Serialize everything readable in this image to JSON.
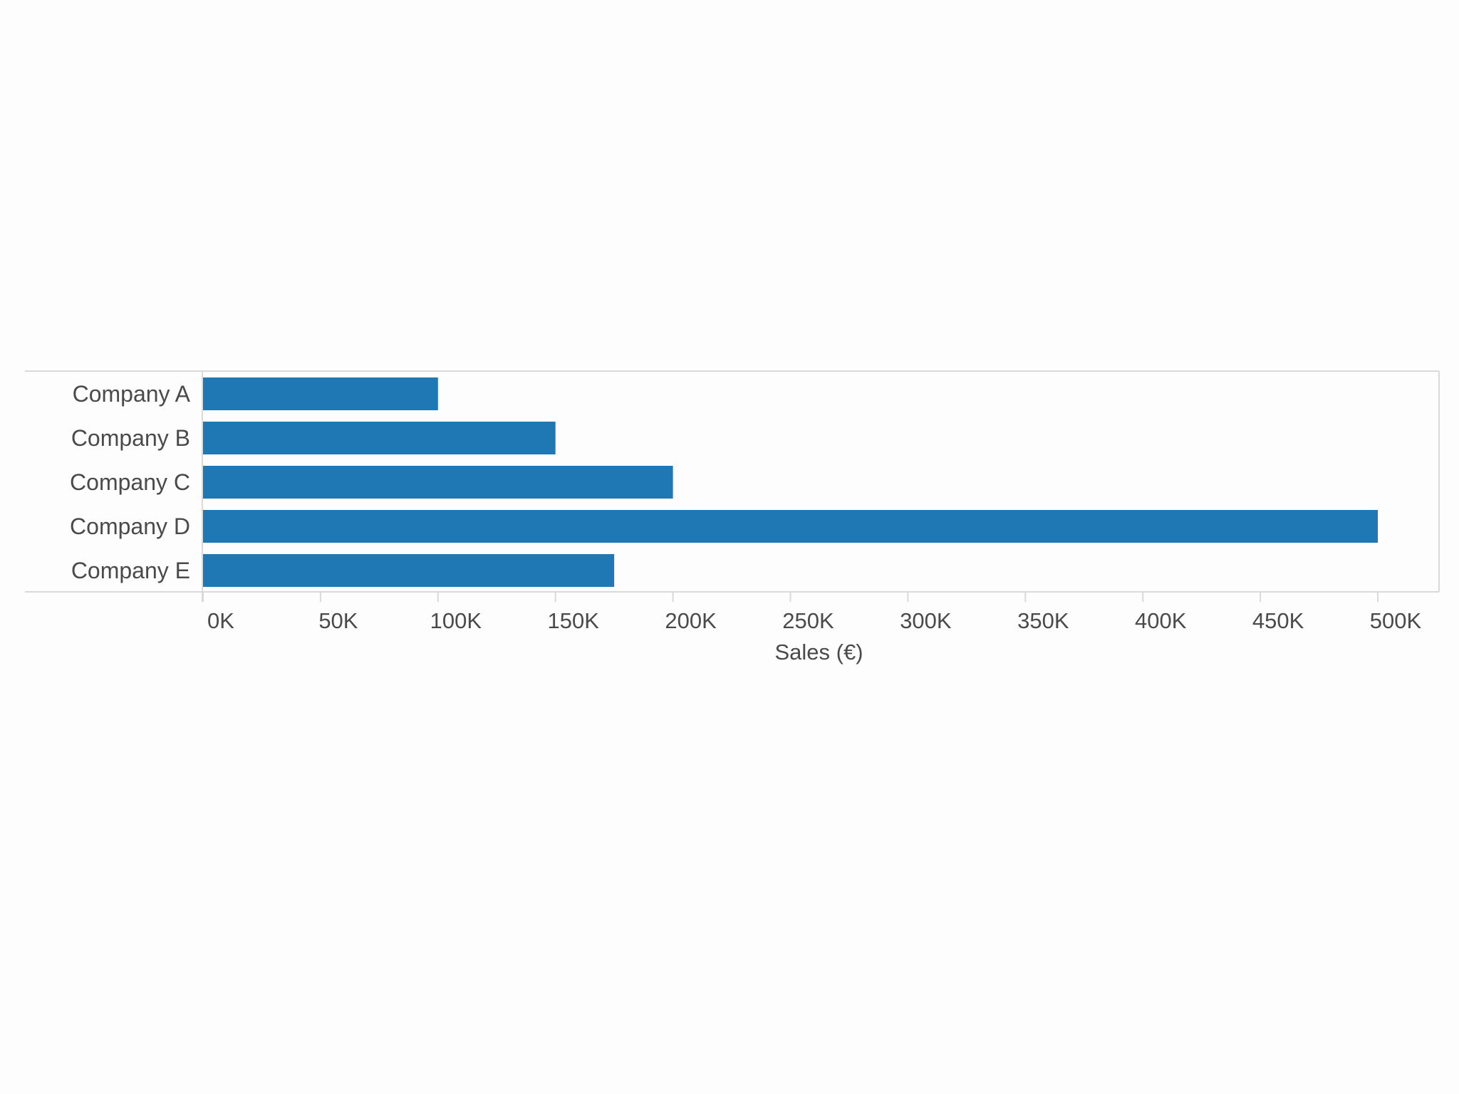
{
  "chart_data": {
    "type": "bar",
    "orientation": "horizontal",
    "categories": [
      "Company A",
      "Company B",
      "Company C",
      "Company D",
      "Company E"
    ],
    "values": [
      100000,
      150000,
      200000,
      500000,
      175000
    ],
    "xlabel": "Sales (€)",
    "ylabel": "",
    "xlim": [
      0,
      500000
    ],
    "x_ticks": [
      0,
      50000,
      100000,
      150000,
      200000,
      250000,
      300000,
      350000,
      400000,
      450000,
      500000
    ],
    "x_tick_labels": [
      "0K",
      "50K",
      "100K",
      "150K",
      "200K",
      "250K",
      "300K",
      "350K",
      "400K",
      "450K",
      "500K"
    ],
    "bar_color": "#1f77b4",
    "grid": false
  }
}
